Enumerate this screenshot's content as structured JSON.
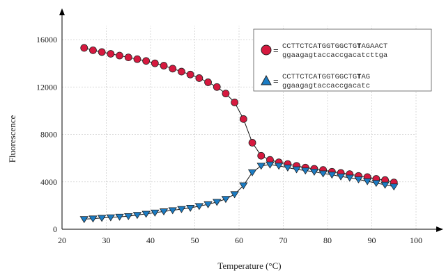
{
  "chart_data": {
    "type": "line",
    "title": "",
    "xlabel": "Temperature (°C)",
    "ylabel": "Fluorescence",
    "xlim": [
      20,
      100
    ],
    "ylim": [
      0,
      16000
    ],
    "xticks": [
      20,
      30,
      40,
      50,
      60,
      70,
      80,
      90,
      100
    ],
    "yticks": [
      0,
      4000,
      8000,
      12000,
      16000
    ],
    "xtick_labels": [
      "20",
      "30",
      "40",
      "50",
      "60",
      "70",
      "80",
      "90",
      "100"
    ],
    "ytick_labels": [
      "0",
      "4000",
      "8000",
      "12000",
      "16000"
    ],
    "grid": true,
    "legend_position": "top-right",
    "series": [
      {
        "marker": "circle",
        "color": "#d6193f",
        "legend_line1": [
          "CCTTCTCATGGTGGCTG",
          "T",
          "AGAACT"
        ],
        "legend_line2": "ggaagagtaccaccgacatcttga",
        "x": [
          25,
          27,
          29,
          31,
          33,
          35,
          37,
          39,
          41,
          43,
          45,
          47,
          49,
          51,
          53,
          55,
          57,
          59,
          61,
          63,
          65,
          67,
          69,
          71,
          73,
          75,
          77,
          79,
          81,
          83,
          85,
          87,
          89,
          91,
          93,
          95
        ],
        "y": [
          15300,
          15100,
          14950,
          14800,
          14650,
          14500,
          14350,
          14200,
          14000,
          13800,
          13550,
          13300,
          13050,
          12750,
          12400,
          12000,
          11450,
          10700,
          9300,
          7300,
          6200,
          5850,
          5650,
          5500,
          5350,
          5200,
          5100,
          5000,
          4850,
          4750,
          4650,
          4500,
          4400,
          4250,
          4150,
          3950
        ]
      },
      {
        "marker": "triangle-down",
        "color": "#1b7cc4",
        "legend_line1": [
          "CCTTCTCATGGTGGCTG",
          "T",
          "AG"
        ],
        "legend_line2": "ggaagagtaccaccgacatc",
        "x": [
          25,
          27,
          29,
          31,
          33,
          35,
          37,
          39,
          41,
          43,
          45,
          47,
          49,
          51,
          53,
          55,
          57,
          59,
          61,
          63,
          65,
          67,
          69,
          71,
          73,
          75,
          77,
          79,
          81,
          83,
          85,
          87,
          89,
          91,
          93,
          95
        ],
        "y": [
          850,
          900,
          950,
          1000,
          1050,
          1100,
          1200,
          1300,
          1400,
          1500,
          1600,
          1700,
          1800,
          1950,
          2100,
          2300,
          2550,
          2950,
          3700,
          4800,
          5350,
          5450,
          5350,
          5200,
          5050,
          4950,
          4850,
          4700,
          4600,
          4450,
          4350,
          4200,
          4050,
          3900,
          3750,
          3600
        ]
      }
    ]
  }
}
